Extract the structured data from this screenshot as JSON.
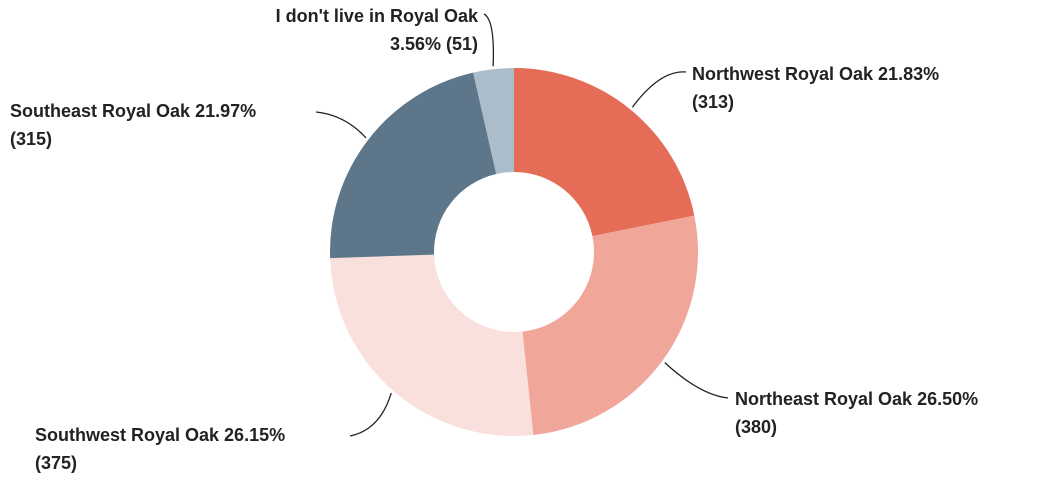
{
  "chart_data": {
    "type": "donut",
    "categories": [
      "Northwest Royal Oak",
      "Northeast Royal Oak",
      "Southwest Royal Oak",
      "Southeast Royal Oak",
      "I don't live in Royal Oak"
    ],
    "values": [
      21.83,
      26.5,
      26.15,
      21.97,
      3.56
    ],
    "value_labels": [
      "21.83%",
      "26.50%",
      "26.15%",
      "21.97%",
      "3.56%"
    ],
    "counts": [
      313,
      380,
      375,
      315,
      51
    ],
    "count_labels": [
      "(313)",
      "(380)",
      "(375)",
      "(315)",
      "(51)"
    ],
    "colors": [
      "#e56c57",
      "#f0a699",
      "#fae0dc",
      "#5d7689",
      "#abbdca"
    ]
  }
}
